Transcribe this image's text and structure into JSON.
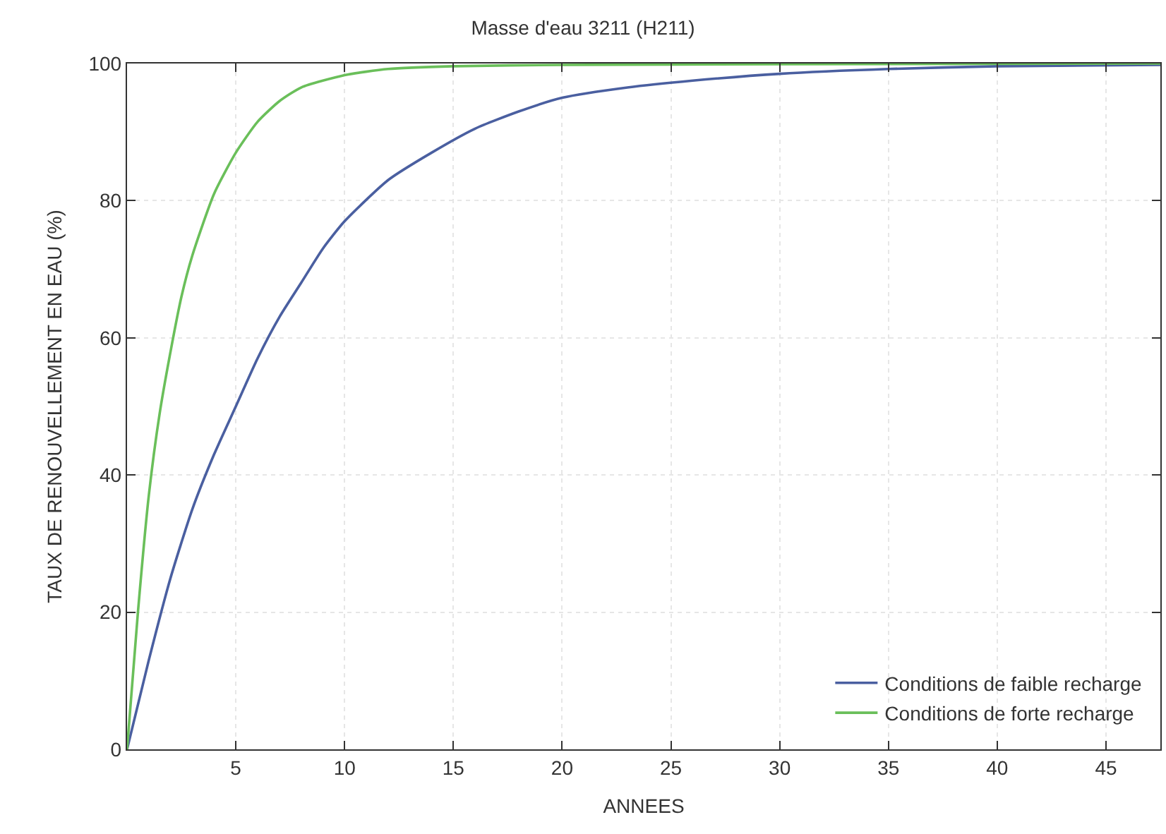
{
  "chart_data": {
    "type": "line",
    "title": "Masse d'eau 3211 (H211)",
    "xlabel": "ANNEES",
    "ylabel": "TAUX DE RENOUVELLEMENT EN EAU (%)",
    "xlim": [
      0,
      47.5
    ],
    "xticks": [
      5,
      10,
      15,
      20,
      25,
      30,
      35,
      40,
      45
    ],
    "ylim": [
      0,
      100
    ],
    "yticks": [
      0,
      20,
      40,
      60,
      80,
      100
    ],
    "grid": true,
    "legend": "bottom right",
    "marker": "none",
    "line_style": "solid",
    "series": [
      {
        "name": "Conditions de faible recharge",
        "color": "#4a5fa0",
        "x": [
          0,
          1,
          2,
          3,
          4,
          5,
          6,
          7,
          8,
          9,
          10,
          12,
          14,
          16,
          18,
          20,
          23,
          26,
          30,
          35,
          40,
          47.5
        ],
        "values": [
          0,
          13,
          25,
          35,
          43,
          50,
          57,
          63,
          68,
          73,
          77,
          83,
          87,
          90.5,
          93,
          95,
          96.5,
          97.5,
          98.5,
          99.2,
          99.6,
          99.8
        ]
      },
      {
        "name": "Conditions de forte recharge",
        "color": "#6abf5a",
        "x": [
          0,
          0.5,
          1,
          1.5,
          2,
          2.5,
          3,
          4,
          5,
          6,
          7,
          8,
          10,
          12,
          15,
          20,
          30,
          47.5
        ],
        "values": [
          0,
          20,
          37,
          49,
          58,
          66,
          72,
          81,
          87,
          91.5,
          94.5,
          96.5,
          98.3,
          99.2,
          99.6,
          99.8,
          99.9,
          100
        ]
      }
    ]
  }
}
